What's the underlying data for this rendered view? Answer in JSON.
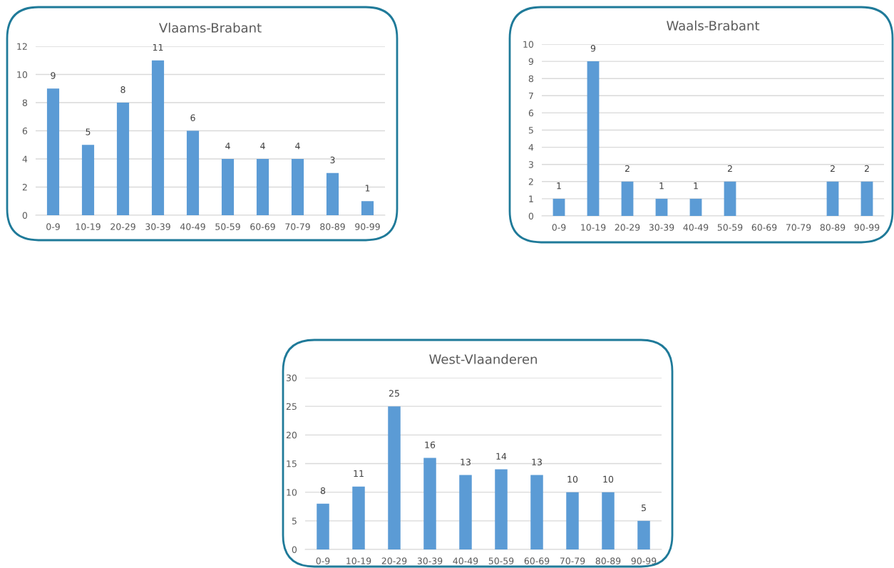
{
  "chart_data": [
    {
      "type": "bar",
      "title": "Vlaams-Brabant",
      "categories": [
        "0-9",
        "10-19",
        "20-29",
        "30-39",
        "40-49",
        "50-59",
        "60-69",
        "70-79",
        "80-89",
        "90-99"
      ],
      "values": [
        9,
        5,
        8,
        11,
        6,
        4,
        4,
        4,
        3,
        1
      ],
      "color": "#5b9bd5",
      "ylim": [
        0,
        12
      ],
      "yticks": [
        0,
        2,
        4,
        6,
        8,
        10,
        12
      ],
      "grid": "y",
      "data_labels": true
    },
    {
      "type": "bar",
      "title": "Waals-Brabant",
      "categories": [
        "0-9",
        "10-19",
        "20-29",
        "30-39",
        "40-49",
        "50-59",
        "60-69",
        "70-79",
        "80-89",
        "90-99"
      ],
      "values": [
        1,
        9,
        2,
        1,
        1,
        2,
        null,
        null,
        2,
        2
      ],
      "color": "#5b9bd5",
      "ylim": [
        0,
        10
      ],
      "yticks": [
        0,
        1,
        2,
        3,
        4,
        5,
        6,
        7,
        8,
        9,
        10
      ],
      "grid": "y",
      "data_labels": true
    },
    {
      "type": "bar",
      "title": "West-Vlaanderen",
      "categories": [
        "0-9",
        "10-19",
        "20-29",
        "30-39",
        "40-49",
        "50-59",
        "60-69",
        "70-79",
        "80-89",
        "90-99"
      ],
      "values": [
        8,
        11,
        25,
        16,
        13,
        14,
        13,
        10,
        10,
        5
      ],
      "color": "#5b9bd5",
      "ylim": [
        0,
        30
      ],
      "yticks": [
        0,
        5,
        10,
        15,
        20,
        25,
        30
      ],
      "grid": "y",
      "data_labels": true
    }
  ]
}
